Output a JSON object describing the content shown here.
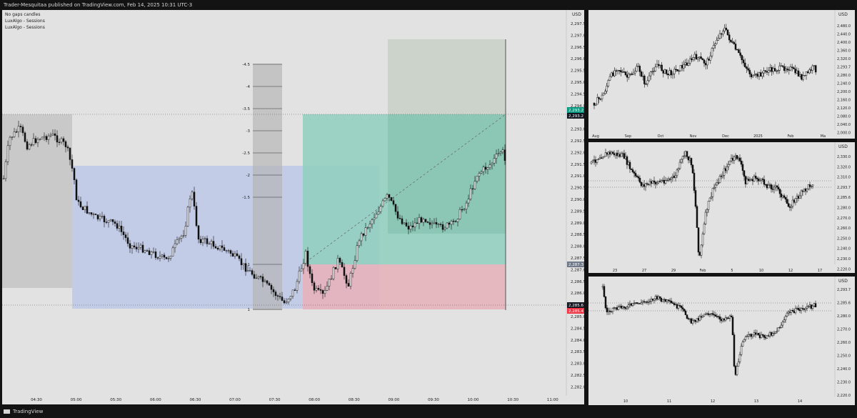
{
  "header": {
    "publish_line": "Trader-Mesquitaa published on TradingView.com, Feb 14, 2025 10:31 UTC-3"
  },
  "footer": {
    "brand": "TradingView"
  },
  "main_chart": {
    "legend": [
      "No gaps candles",
      "LuxAlgo - Sessions",
      "LuxAlgo - Sessions"
    ],
    "currency": "USD",
    "price_axis": [
      "2,297.5",
      "2,297.0",
      "2,296.5",
      "2,296.0",
      "2,295.5",
      "2,295.0",
      "2,294.5",
      "2,294.0",
      "2,293.5",
      "2,293.0",
      "2,292.5",
      "2,292.0",
      "2,291.5",
      "2,291.0",
      "2,290.5",
      "2,290.0",
      "2,289.5",
      "2,289.0",
      "2,288.5",
      "2,288.0",
      "2,287.5",
      "2,287.0",
      "2,286.5",
      "2,286.0",
      "2,285.5",
      "2,285.0",
      "2,284.5",
      "2,284.0",
      "2,283.5",
      "2,283.0",
      "2,282.5",
      "2,282.0"
    ],
    "time_axis": [
      "04:30",
      "05:00",
      "05:30",
      "06:00",
      "06:30",
      "07:00",
      "07:30",
      "08:00",
      "08:30",
      "09:00",
      "09:30",
      "10:00",
      "10:30",
      "11:00"
    ],
    "fib_levels": [
      "-4.5",
      "-4",
      "-3.5",
      "-3",
      "-2.5",
      "-2",
      "-1.5",
      "-1",
      "1"
    ],
    "price_tags": {
      "target_a": "2,293.2",
      "target_b": "2,293.2",
      "entry": "2,287.3",
      "stop_a": "2,285.6",
      "stop_b": "2,285.4"
    }
  },
  "chart_r1": {
    "currency": "USD",
    "price_axis": [
      "2,480.0",
      "2,440.0",
      "2,400.0",
      "2,360.0",
      "2,320.0",
      "2,293.7",
      "2,280.0",
      "2,240.0",
      "2,200.0",
      "2,160.0",
      "2,120.0",
      "2,080.0",
      "2,040.0",
      "2,000.0"
    ],
    "time_axis": [
      "Aug",
      "Sep",
      "Oct",
      "Nov",
      "Dec",
      "2025",
      "Feb",
      "Ma"
    ]
  },
  "chart_r2": {
    "currency": "USD",
    "price_axis": [
      "2,330.0",
      "2,320.0",
      "2,310.0",
      "2,293.7",
      "2,285.6",
      "2,280.0",
      "2,270.0",
      "2,260.0",
      "2,250.0",
      "2,240.0",
      "2,230.0",
      "2,220.0"
    ],
    "time_axis": [
      "23",
      "27",
      "29",
      "Feb",
      "5",
      "10",
      "12",
      "17"
    ]
  },
  "chart_r3": {
    "currency": "USD",
    "price_axis": [
      "2,293.7",
      "2,285.6",
      "2,280.0",
      "2,270.0",
      "2,260.0",
      "2,250.0",
      "2,240.0",
      "2,230.0",
      "2,220.0"
    ],
    "time_axis": [
      "10",
      "11",
      "12",
      "13",
      "14"
    ]
  },
  "colors": {
    "pane_bg": "#e2e2e2",
    "frame": "#131313",
    "candle": "#111111",
    "session_grey": "#c9c9c9",
    "session_blue": "#c3cce6",
    "target_zone": "#8fcfbd",
    "target_zone_dark": "#84bfae",
    "stop_zone": "#e6b3bb",
    "tag_green": "#089981",
    "tag_red": "#f23645",
    "tag_grey": "#707a8a",
    "tag_black": "#131722"
  }
}
